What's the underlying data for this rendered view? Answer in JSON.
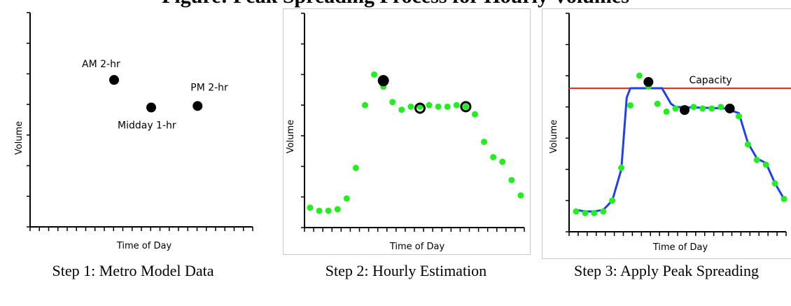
{
  "page_title": "Figure: Peak Spreading Process for Hourly Volumes",
  "captions": [
    "Step 1: Metro Model Data",
    "Step 2: Hourly Estimation",
    "Step 3: Apply Peak Spreading"
  ],
  "colors": {
    "model_points": "#000000",
    "hourly_points": "#22ee22",
    "spread_line": "#1f3ff0",
    "capacity_line": "#ee2b1e",
    "axis": "#000000"
  },
  "chart_data": [
    {
      "type": "scatter",
      "title": "",
      "xlabel": "Time of Day",
      "ylabel": "Volume",
      "xlim": [
        0,
        24
      ],
      "ylim": [
        0,
        7
      ],
      "x_ticks": 24,
      "y_ticks": 7,
      "grid": false,
      "series": [
        {
          "points": [
            {
              "x": 8,
              "y": 4.8,
              "label": "AM 2-hr"
            },
            {
              "x": 12,
              "y": 3.9,
              "label": "Midday 1-hr"
            },
            {
              "x": 17,
              "y": 3.95,
              "label": "PM 2-hr"
            }
          ]
        }
      ]
    },
    {
      "type": "scatter",
      "title": "",
      "xlabel": "Time of Day",
      "ylabel": "Volume",
      "xlim": [
        0,
        24
      ],
      "ylim": [
        0,
        7
      ],
      "x_ticks": 24,
      "y_ticks": 7,
      "grid": false,
      "series": [
        {
          "points": [
            {
              "x": 0,
              "y": 0.65
            },
            {
              "x": 1,
              "y": 0.55
            },
            {
              "x": 2,
              "y": 0.55
            },
            {
              "x": 3,
              "y": 0.6
            },
            {
              "x": 4,
              "y": 0.95
            },
            {
              "x": 5,
              "y": 1.95
            },
            {
              "x": 6,
              "y": 4.0
            },
            {
              "x": 7,
              "y": 5.0
            },
            {
              "x": 8,
              "y": 4.6
            },
            {
              "x": 9,
              "y": 4.1
            },
            {
              "x": 10,
              "y": 3.85
            },
            {
              "x": 11,
              "y": 3.95
            },
            {
              "x": 12,
              "y": 3.95
            },
            {
              "x": 13,
              "y": 4.0
            },
            {
              "x": 14,
              "y": 3.95
            },
            {
              "x": 15,
              "y": 3.95
            },
            {
              "x": 16,
              "y": 4.0
            },
            {
              "x": 17,
              "y": 3.95
            },
            {
              "x": 18,
              "y": 3.7
            },
            {
              "x": 19,
              "y": 2.8
            },
            {
              "x": 20,
              "y": 2.3
            },
            {
              "x": 21,
              "y": 2.15
            },
            {
              "x": 22,
              "y": 1.55
            },
            {
              "x": 23,
              "y": 1.05
            }
          ]
        },
        {
          "points": [
            {
              "x": 8,
              "y": 4.8
            },
            {
              "x": 12,
              "y": 3.9
            },
            {
              "x": 17,
              "y": 3.95
            }
          ]
        }
      ]
    },
    {
      "type": "line",
      "title": "",
      "xlabel": "Time of Day",
      "ylabel": "Volume",
      "xlim": [
        0,
        24
      ],
      "ylim": [
        0,
        7
      ],
      "x_ticks": 24,
      "y_ticks": 7,
      "grid": false,
      "series": [
        {
          "kind": "line",
          "points": [
            {
              "x": 0,
              "y": 0.7
            },
            {
              "x": 1,
              "y": 0.65
            },
            {
              "x": 2,
              "y": 0.65
            },
            {
              "x": 3,
              "y": 0.7
            },
            {
              "x": 4,
              "y": 1.0
            },
            {
              "x": 5,
              "y": 2.0
            },
            {
              "x": 5.6,
              "y": 4.3
            },
            {
              "x": 6,
              "y": 4.6
            },
            {
              "x": 9.5,
              "y": 4.6
            },
            {
              "x": 10.5,
              "y": 4.1
            },
            {
              "x": 11,
              "y": 4.0
            },
            {
              "x": 16.5,
              "y": 3.95
            },
            {
              "x": 18,
              "y": 3.8
            },
            {
              "x": 19,
              "y": 2.85
            },
            {
              "x": 20,
              "y": 2.35
            },
            {
              "x": 21,
              "y": 2.2
            },
            {
              "x": 22,
              "y": 1.55
            },
            {
              "x": 23,
              "y": 1.05
            }
          ]
        },
        {
          "kind": "scatter",
          "points": [
            {
              "x": 0,
              "y": 0.65
            },
            {
              "x": 1,
              "y": 0.6
            },
            {
              "x": 2,
              "y": 0.6
            },
            {
              "x": 3,
              "y": 0.65
            },
            {
              "x": 4,
              "y": 1.0
            },
            {
              "x": 5,
              "y": 2.05
            },
            {
              "x": 6,
              "y": 4.05
            },
            {
              "x": 7,
              "y": 5.0
            },
            {
              "x": 8,
              "y": 4.65
            },
            {
              "x": 9,
              "y": 4.1
            },
            {
              "x": 10,
              "y": 3.85
            },
            {
              "x": 11,
              "y": 3.95
            },
            {
              "x": 12,
              "y": 3.95
            },
            {
              "x": 13,
              "y": 4.0
            },
            {
              "x": 14,
              "y": 3.95
            },
            {
              "x": 15,
              "y": 3.95
            },
            {
              "x": 16,
              "y": 4.0
            },
            {
              "x": 17,
              "y": 3.95
            },
            {
              "x": 18,
              "y": 3.7
            },
            {
              "x": 19,
              "y": 2.8
            },
            {
              "x": 20,
              "y": 2.3
            },
            {
              "x": 21,
              "y": 2.15
            },
            {
              "x": 22,
              "y": 1.55
            },
            {
              "x": 23,
              "y": 1.05
            }
          ]
        },
        {
          "kind": "scatter",
          "points": [
            {
              "x": 8,
              "y": 4.8
            },
            {
              "x": 12,
              "y": 3.9
            },
            {
              "x": 17,
              "y": 3.95
            }
          ]
        },
        {
          "kind": "hline",
          "name": "Capacity",
          "y": 4.6
        }
      ]
    }
  ]
}
